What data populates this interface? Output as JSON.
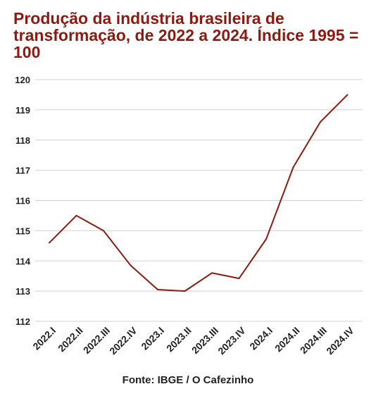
{
  "chart_data": {
    "type": "line",
    "title": "Produção da indústria brasileira de transformação, de 2022 a 2024. Índice 1995 = 100",
    "categories": [
      "2022.I",
      "2022.II",
      "2022.III",
      "2022.IV",
      "2023.I",
      "2023.II",
      "2023.III",
      "2023.IV",
      "2024.I",
      "2024.II",
      "2024.III",
      "2024.IV"
    ],
    "series": [
      {
        "values": [
          114.6,
          115.5,
          115.0,
          113.85,
          113.05,
          113.0,
          113.6,
          113.42,
          114.72,
          117.1,
          118.6,
          119.5
        ]
      }
    ],
    "ylim": [
      112,
      120
    ],
    "yticks": [
      "112",
      "113",
      "114",
      "115",
      "116",
      "117",
      "118",
      "119",
      "120"
    ],
    "grid": true,
    "line_color": "#8b1a10",
    "title_color": "#8b1a10",
    "source": "Fonte: IBGE / O Cafezinho"
  }
}
